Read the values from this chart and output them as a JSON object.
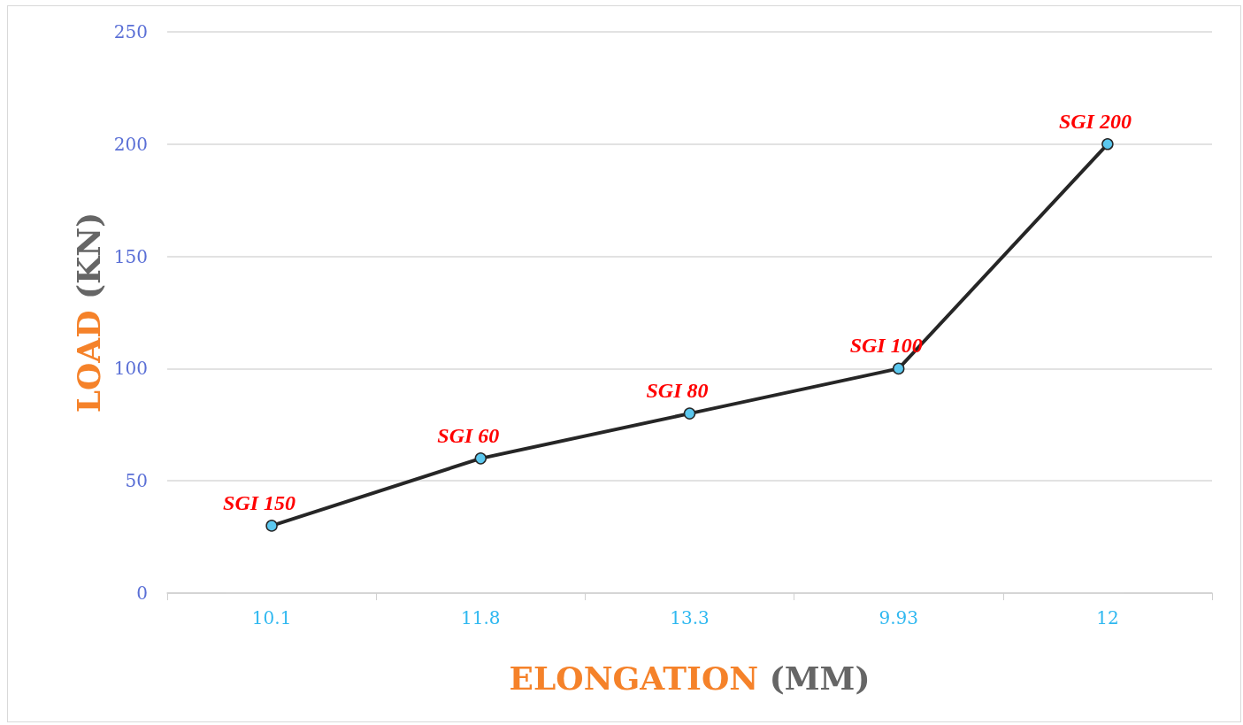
{
  "chart_data": {
    "type": "line",
    "xlabel": "ELONGATION (MM)",
    "ylabel": "LOAD (KN)",
    "categories": [
      "10.1",
      "11.8",
      "13.3",
      "9.93",
      "12"
    ],
    "series": [
      {
        "color": "#262626",
        "values": [
          30,
          60,
          80,
          100,
          200
        ]
      }
    ],
    "ylim": [
      0,
      250
    ],
    "yticks": [
      0,
      50,
      100,
      150,
      200,
      250
    ],
    "grid": "y",
    "marker": "circle",
    "line_style": "solid",
    "annotations": [
      {
        "text": "SGI 150",
        "x": "10.1",
        "y": 30
      },
      {
        "text": "SGI 60",
        "x": "11.8",
        "y": 60
      },
      {
        "text": "SGI 80",
        "x": "13.3",
        "y": 80
      },
      {
        "text": "SGI 100",
        "x": "9.93",
        "y": 100
      },
      {
        "text": "SGI 200",
        "x": "12",
        "y": 200
      }
    ]
  }
}
